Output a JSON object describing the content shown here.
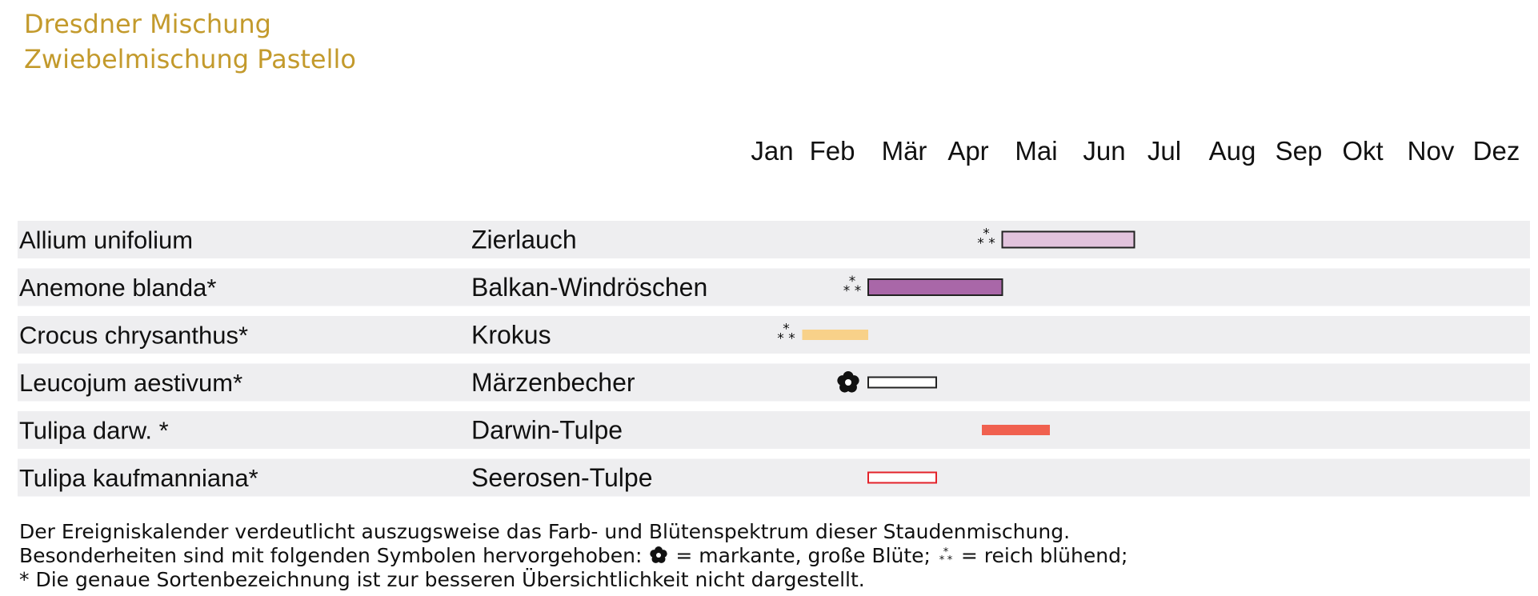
{
  "title": "Dresdner Mischung",
  "subtitle": "Zwiebelmischung Pastello",
  "chart_data": {
    "type": "gantt",
    "title": "Dresdner Mischung",
    "subtitle": "Zwiebelmischung Pastello",
    "months": [
      "Jan",
      "Feb",
      "Mär",
      "Apr",
      "Mai",
      "Jun",
      "Jul",
      "Aug",
      "Sep",
      "Okt",
      "Nov",
      "Dez"
    ],
    "x_range": [
      1,
      12
    ],
    "grid": false,
    "rows": [
      {
        "latin": "Allium unifolium",
        "common": "Zierlauch",
        "start": 4.5,
        "end": 6.5,
        "color": "#e2c3dd",
        "outline": "#222222",
        "symbol": "reich",
        "bar_height": "medium"
      },
      {
        "latin": "Anemone blanda*",
        "common": "Balkan-Windröschen",
        "start": 2.5,
        "end": 4.5,
        "color": "#a967a8",
        "outline": "#222222",
        "symbol": "reich",
        "bar_height": "medium"
      },
      {
        "latin": "Crocus chrysanthus*",
        "common": "Krokus",
        "start": 1.5,
        "end": 2.5,
        "color": "#f8d189",
        "outline": "none",
        "symbol": "reich",
        "bar_height": "thin"
      },
      {
        "latin": "Leucojum aestivum*",
        "common": "Märzenbecher",
        "start": 2.5,
        "end": 3.5,
        "color": "#ffffff",
        "outline": "#222222",
        "symbol": "markant",
        "bar_height": "thin"
      },
      {
        "latin": "Tulipa darw. *",
        "common": "Darwin-Tulpe",
        "start": 4.2,
        "end": 5.2,
        "color": "#f0604f",
        "outline": "none",
        "symbol": "",
        "bar_height": "thin"
      },
      {
        "latin": "Tulipa kaufmanniana*",
        "common": "Seerosen-Tulpe",
        "start": 2.5,
        "end": 3.5,
        "color": "#ffffff",
        "outline": "#e3222a",
        "symbol": "",
        "bar_height": "thin"
      }
    ]
  },
  "legend": {
    "line1": "Der Ereigniskalender verdeutlicht auszugsweise das Farb- und Blütenspektrum dieser Staudenmischung.",
    "line2_prefix": "Besonderheiten sind mit folgenden Symbolen hervorgehoben: ",
    "markant_label": " = markante, große Blüte; ",
    "reich_label": " = reich blühend;",
    "line3": "* Die genaue Sortenbezeichnung ist zur besseren Übersichtlichkeit nicht dargestellt."
  },
  "colors": {
    "title": "#c39a2c",
    "row_band": "#eeeef0"
  }
}
